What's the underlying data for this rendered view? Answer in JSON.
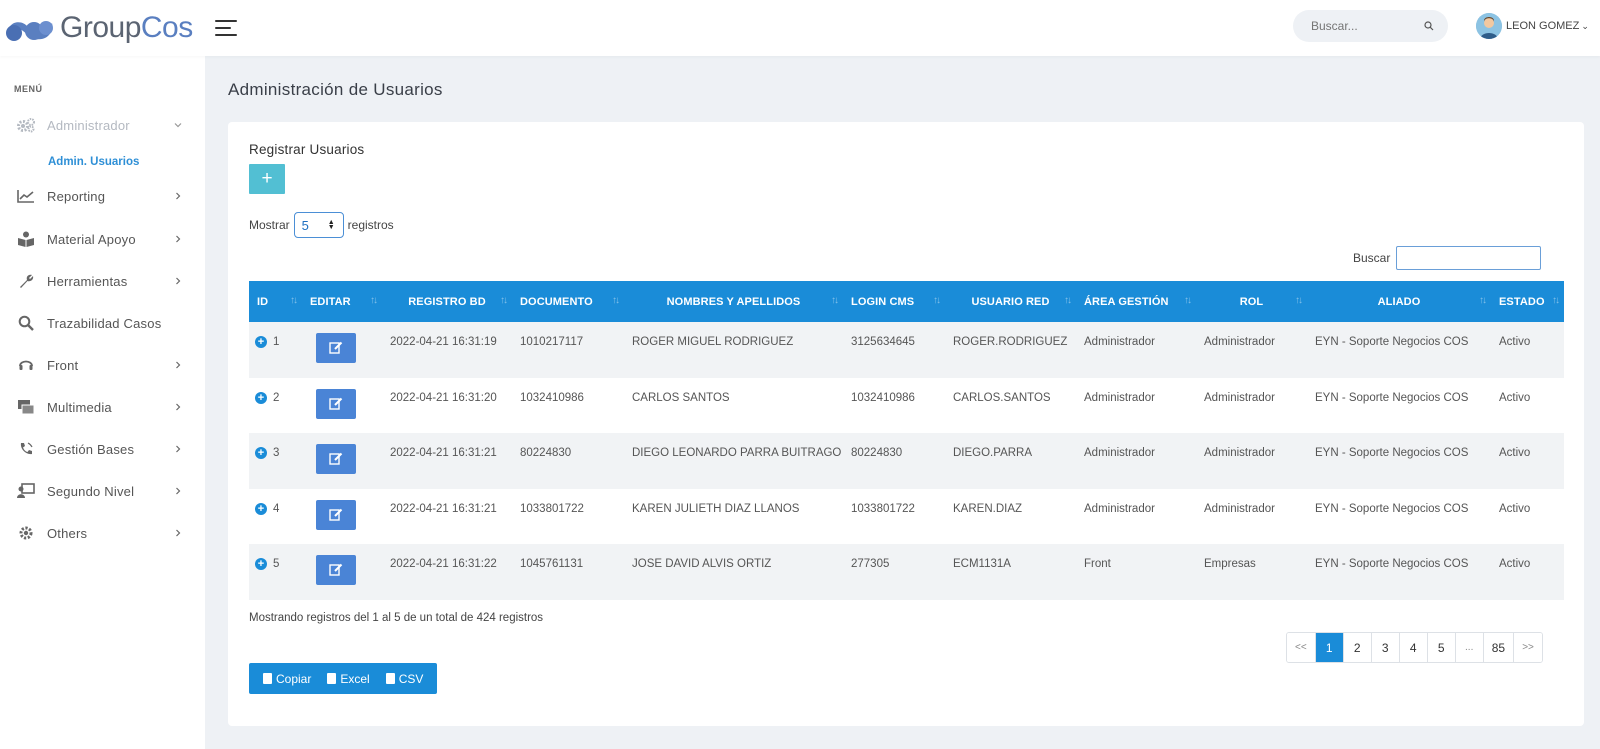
{
  "header": {
    "logo_group": "Group",
    "logo_cos": "Cos",
    "search_placeholder": "Buscar...",
    "user_name": "LEON GOMEZ"
  },
  "sidebar": {
    "menu_title": "MENÚ",
    "items": [
      {
        "label": "Administrador",
        "icon": "gears-icon",
        "active": true
      },
      {
        "label": "Reporting",
        "icon": "chart-line-icon"
      },
      {
        "label": "Material Apoyo",
        "icon": "book-reader-icon"
      },
      {
        "label": "Herramientas",
        "icon": "wrench-icon"
      },
      {
        "label": "Trazabilidad Casos",
        "icon": "search-icon"
      },
      {
        "label": "Front",
        "icon": "headset-icon"
      },
      {
        "label": "Multimedia",
        "icon": "photo-video-icon"
      },
      {
        "label": "Gestión Bases",
        "icon": "phone-volume-icon"
      },
      {
        "label": "Segundo Nivel",
        "icon": "chalkboard-teacher-icon"
      },
      {
        "label": "Others",
        "icon": "cog-icon"
      }
    ],
    "subitem": "Admin. Usuarios"
  },
  "page": {
    "title": "Administración de Usuarios",
    "card_title": "Registrar Usuarios",
    "add_label": "+",
    "show_label": "Mostrar",
    "show_value": "5",
    "records_label": "registros",
    "filter_label": "Buscar"
  },
  "table": {
    "columns": [
      "ID",
      "EDITAR",
      "REGISTRO BD",
      "DOCUMENTO",
      "NOMBRES Y APELLIDOS",
      "LOGIN CMS",
      "USUARIO RED",
      "ÁREA GESTIÓN",
      "ROL",
      "ALIADO",
      "ESTADO"
    ],
    "rows": [
      [
        "1",
        "2022-04-21 16:31:19",
        "1010217117",
        "ROGER MIGUEL RODRIGUEZ",
        "3125634645",
        "ROGER.RODRIGUEZ",
        "Administrador",
        "Administrador",
        "EYN - Soporte Negocios COS",
        "Activo"
      ],
      [
        "2",
        "2022-04-21 16:31:20",
        "1032410986",
        "CARLOS SANTOS",
        "1032410986",
        "CARLOS.SANTOS",
        "Administrador",
        "Administrador",
        "EYN - Soporte Negocios COS",
        "Activo"
      ],
      [
        "3",
        "2022-04-21 16:31:21",
        "80224830",
        "DIEGO LEONARDO PARRA BUITRAGO",
        "80224830",
        "DIEGO.PARRA",
        "Administrador",
        "Administrador",
        "EYN - Soporte Negocios COS",
        "Activo"
      ],
      [
        "4",
        "2022-04-21 16:31:21",
        "1033801722",
        "KAREN JULIETH DIAZ LLANOS",
        "1033801722",
        "KAREN.DIAZ",
        "Administrador",
        "Administrador",
        "EYN - Soporte Negocios COS",
        "Activo"
      ],
      [
        "5",
        "2022-04-21 16:31:22",
        "1045761131",
        "JOSE DAVID ALVIS ORTIZ",
        "277305",
        "ECM1131A",
        "Front",
        "Empresas",
        "EYN - Soporte Negocios COS",
        "Activo"
      ]
    ]
  },
  "info": "Mostrando registros del 1 al 5 de un total de 424 registros",
  "pagination": {
    "first": "<<",
    "pages": [
      "1",
      "2",
      "3",
      "4",
      "5"
    ],
    "ellipsis": "...",
    "last_page": "85",
    "next": ">>",
    "current": "1"
  },
  "export": {
    "copy": "Copiar",
    "excel": "Excel",
    "csv": "CSV"
  },
  "colors": {
    "primary": "#1a8cd8",
    "add_button": "#52bfd3",
    "edit_button": "#4a84d6",
    "link": "#2e8fd6"
  }
}
